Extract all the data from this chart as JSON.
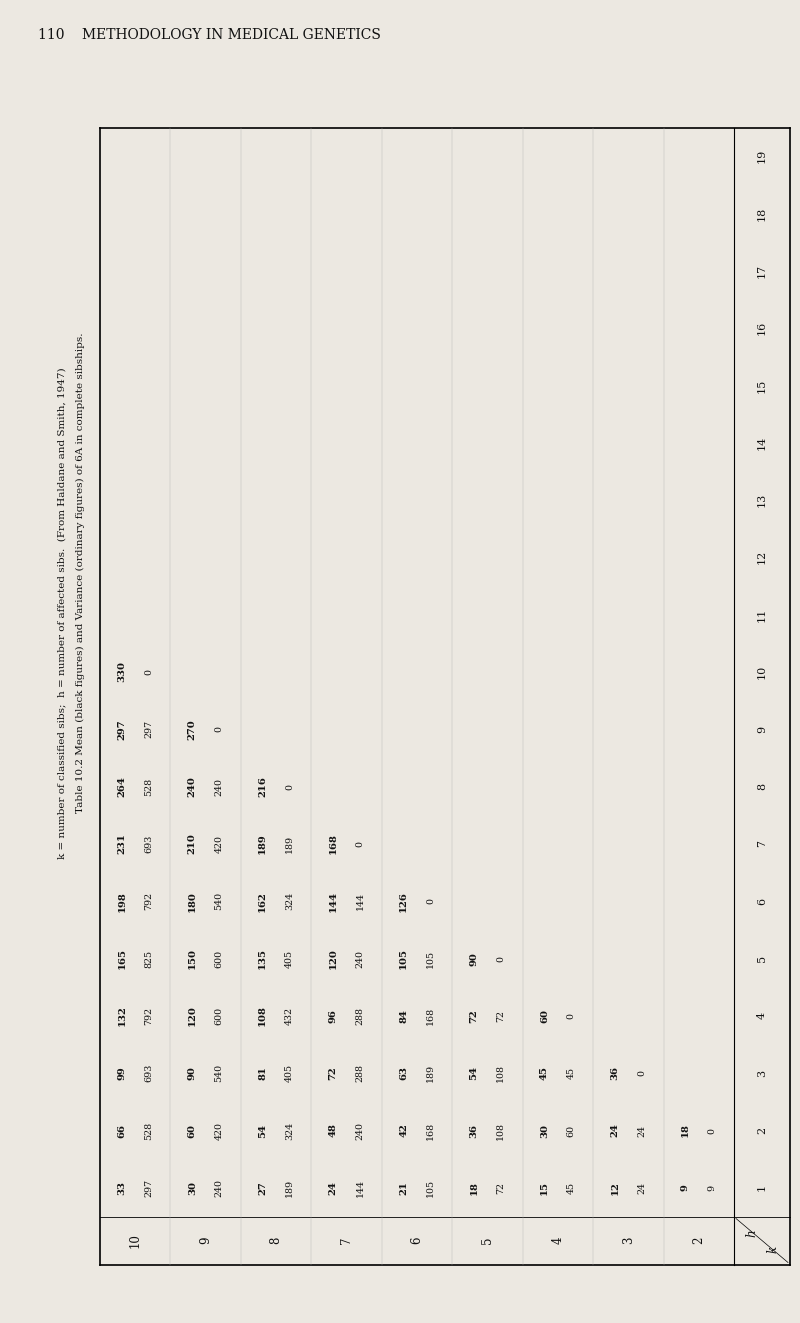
{
  "page_header": "110    METHODOLOGY IN MEDICAL GENETICS",
  "caption_line1": "Table 10.2 Mean (black figures) and Variance (ordinary figures) of 6A in complete sibships.",
  "caption_line2": "k = number of classified sibs;  h = number of affected sibs.  (From Haldane and Smith, 1947)",
  "k_values": [
    2,
    3,
    4,
    5,
    6,
    7,
    8,
    9,
    10
  ],
  "h_values": [
    1,
    2,
    3,
    4,
    5,
    6,
    7,
    8,
    9,
    10,
    11,
    12,
    13,
    14,
    15,
    16,
    17,
    18,
    19
  ],
  "bg_color": "#ece8e1",
  "text_color": "#111111",
  "table_data": [
    [
      [
        "9",
        "9"
      ],
      [
        "18",
        "0"
      ],
      null,
      null,
      null,
      null,
      null,
      null,
      null,
      null,
      null,
      null,
      null,
      null,
      null,
      null,
      null,
      null,
      null
    ],
    [
      [
        "12",
        "24"
      ],
      [
        "24",
        "24"
      ],
      [
        "36",
        "0"
      ],
      null,
      null,
      null,
      null,
      null,
      null,
      null,
      null,
      null,
      null,
      null,
      null,
      null,
      null,
      null,
      null
    ],
    [
      [
        "15",
        "45"
      ],
      [
        "30",
        "60"
      ],
      [
        "45",
        "45"
      ],
      [
        "60",
        "0"
      ],
      null,
      null,
      null,
      null,
      null,
      null,
      null,
      null,
      null,
      null,
      null,
      null,
      null,
      null,
      null
    ],
    [
      [
        "18",
        "72"
      ],
      [
        "36",
        "108"
      ],
      [
        "54",
        "108"
      ],
      [
        "72",
        "72"
      ],
      [
        "90",
        "0"
      ],
      null,
      null,
      null,
      null,
      null,
      null,
      null,
      null,
      null,
      null,
      null,
      null,
      null,
      null
    ],
    [
      [
        "21",
        "105"
      ],
      [
        "42",
        "168"
      ],
      [
        "63",
        "189"
      ],
      [
        "84",
        "168"
      ],
      [
        "105",
        "105"
      ],
      [
        "126",
        "0"
      ],
      null,
      null,
      null,
      null,
      null,
      null,
      null,
      null,
      null,
      null,
      null,
      null,
      null
    ],
    [
      [
        "24",
        "144"
      ],
      [
        "48",
        "240"
      ],
      [
        "72",
        "288"
      ],
      [
        "96",
        "288"
      ],
      [
        "120",
        "240"
      ],
      [
        "144",
        "144"
      ],
      [
        "168",
        "0"
      ],
      null,
      null,
      null,
      null,
      null,
      null,
      null,
      null,
      null,
      null,
      null,
      null
    ],
    [
      [
        "27",
        "189"
      ],
      [
        "54",
        "324"
      ],
      [
        "81",
        "405"
      ],
      [
        "108",
        "432"
      ],
      [
        "135",
        "405"
      ],
      [
        "162",
        "324"
      ],
      [
        "189",
        "189"
      ],
      [
        "216",
        "0"
      ],
      null,
      null,
      null,
      null,
      null,
      null,
      null,
      null,
      null,
      null,
      null
    ],
    [
      [
        "30",
        "240"
      ],
      [
        "60",
        "420"
      ],
      [
        "90",
        "540"
      ],
      [
        "120",
        "600"
      ],
      [
        "150",
        "600"
      ],
      [
        "180",
        "540"
      ],
      [
        "210",
        "420"
      ],
      [
        "240",
        "240"
      ],
      [
        "270",
        "0"
      ],
      null,
      null,
      null,
      null,
      null,
      null,
      null,
      null,
      null,
      null
    ],
    [
      [
        "33",
        "297"
      ],
      [
        "66",
        "528"
      ],
      [
        "99",
        "693"
      ],
      [
        "132",
        "792"
      ],
      [
        "165",
        "825"
      ],
      [
        "198",
        "792"
      ],
      [
        "231",
        "693"
      ],
      [
        "264",
        "528"
      ],
      [
        "297",
        "297"
      ],
      [
        "330",
        "0"
      ],
      null,
      null,
      null,
      null,
      null,
      null,
      null,
      null,
      null
    ]
  ]
}
